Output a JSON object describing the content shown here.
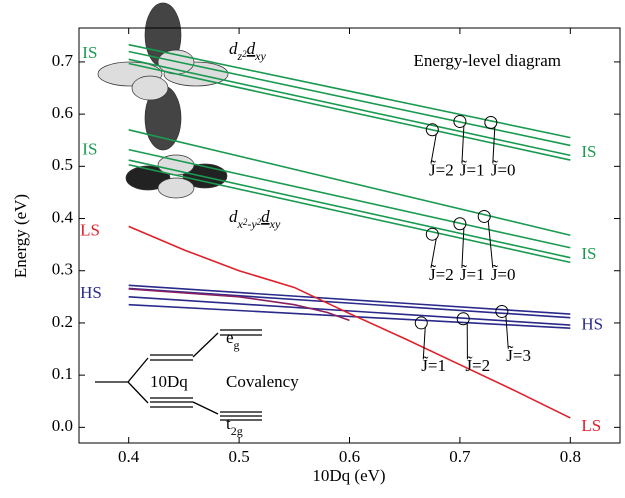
{
  "chart_data": {
    "type": "line",
    "xlabel": "10Dq (eV)",
    "ylabel": "Energy (eV)",
    "xlim": [
      0.355,
      0.845
    ],
    "ylim": [
      -0.03,
      0.765
    ],
    "xticks": [
      0.4,
      0.5,
      0.6,
      0.7,
      0.8
    ],
    "yticks": [
      {
        "value": 0,
        "label": "0.0"
      },
      0.1,
      0.2,
      0.3,
      0.4,
      0.5,
      0.6,
      0.7
    ],
    "series": [
      {
        "color": "#1a9a50",
        "x": [
          0.4,
          0.8
        ],
        "values": [
          0.733,
          0.555
        ]
      },
      {
        "color": "#1a9a50",
        "x": [
          0.4,
          0.8
        ],
        "values": [
          0.72,
          0.54
        ]
      },
      {
        "color": "#1a9a50",
        "x": [
          0.4,
          0.8
        ],
        "values": [
          0.705,
          0.521
        ]
      },
      {
        "color": "#1a9a50",
        "x": [
          0.4,
          0.8
        ],
        "values": [
          0.697,
          0.512
        ]
      },
      {
        "color": "#1a9a50",
        "x": [
          0.4,
          0.8
        ],
        "values": [
          0.57,
          0.368
        ]
      },
      {
        "color": "#1a9a50",
        "x": [
          0.4,
          0.8
        ],
        "values": [
          0.532,
          0.344
        ]
      },
      {
        "color": "#1a9a50",
        "x": [
          0.4,
          0.8
        ],
        "values": [
          0.512,
          0.325
        ]
      },
      {
        "color": "#1a9a50",
        "x": [
          0.4,
          0.8
        ],
        "values": [
          0.503,
          0.316
        ]
      },
      {
        "color": "#2a2a8a",
        "x": [
          0.4,
          0.8
        ],
        "values": [
          0.272,
          0.217
        ]
      },
      {
        "color": "#2a2a8a",
        "x": [
          0.4,
          0.8
        ],
        "values": [
          0.266,
          0.21
        ]
      },
      {
        "color": "#2a2a8a",
        "x": [
          0.4,
          0.8
        ],
        "values": [
          0.25,
          0.196
        ]
      },
      {
        "color": "#2a2a8a",
        "x": [
          0.4,
          0.8
        ],
        "values": [
          0.235,
          0.19
        ]
      },
      {
        "color": "#8a2060",
        "x": [
          0.4,
          0.5,
          0.55,
          0.58,
          0.6
        ],
        "values": [
          0.265,
          0.25,
          0.235,
          0.22,
          0.205
        ]
      },
      {
        "color": "#e0202a",
        "x": [
          0.4,
          0.45,
          0.5,
          0.55,
          0.6,
          0.65,
          0.7,
          0.75,
          0.8
        ],
        "values": [
          0.385,
          0.34,
          0.3,
          0.268,
          0.218,
          0.17,
          0.12,
          0.07,
          0.018
        ]
      }
    ],
    "annotations": [
      "IS",
      "IS",
      "IS",
      "IS",
      "LS",
      "LS",
      "HS",
      "HS",
      "Energy-level diagram",
      "J̃=2",
      "J̃=1",
      "J̃=0",
      "J̃=2",
      "J̃=1",
      "J̃=0",
      "J̃=1",
      "J̃=2",
      "J̃=3",
      "10Dq",
      "Covalency"
    ],
    "orbital_labels": [
      [
        "d",
        "z",
        "2",
        "d",
        "xy"
      ],
      [
        "d",
        "x",
        "2",
        "-y",
        "2",
        "d",
        "xy"
      ]
    ],
    "levels": [
      [
        "e",
        "g"
      ],
      [
        "t",
        "2g"
      ]
    ]
  }
}
